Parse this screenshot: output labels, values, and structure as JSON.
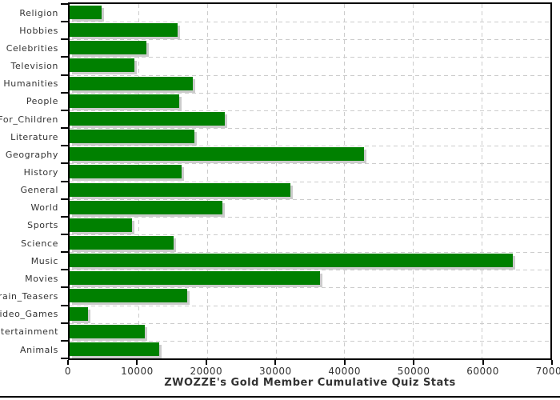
{
  "chart_data": {
    "type": "bar",
    "orientation": "horizontal",
    "title": "ZWOZZE's Gold Member Cumulative Quiz Stats",
    "categories": [
      "Religion",
      "Hobbies",
      "Celebrities",
      "Television",
      "Humanities",
      "People",
      "For_Children",
      "Literature",
      "Geography",
      "History",
      "General",
      "World",
      "Sports",
      "Science",
      "Music",
      "Movies",
      "Brain_Teasers",
      "Video_Games",
      "Entertainment",
      "Animals"
    ],
    "values": [
      4700,
      15700,
      11200,
      9400,
      17900,
      16000,
      22600,
      18200,
      42900,
      16300,
      32100,
      22300,
      9100,
      15100,
      64500,
      36500,
      17100,
      2700,
      11000,
      13100
    ],
    "xlabel": "",
    "ylabel": "",
    "xlim": [
      0,
      70000
    ],
    "x_ticks": [
      0,
      10000,
      20000,
      30000,
      40000,
      50000,
      60000,
      70000
    ],
    "x_tick_labels": [
      "0",
      "10000",
      "20000",
      "30000",
      "40000",
      "50000",
      "60000",
      "70000"
    ],
    "grid": "dashed-both-axes",
    "legend": "none",
    "colors": {
      "bar": "#008000",
      "grid": "#cccccc",
      "shadow": "#cccccc",
      "axis": "#000000",
      "text": "#333333"
    }
  }
}
